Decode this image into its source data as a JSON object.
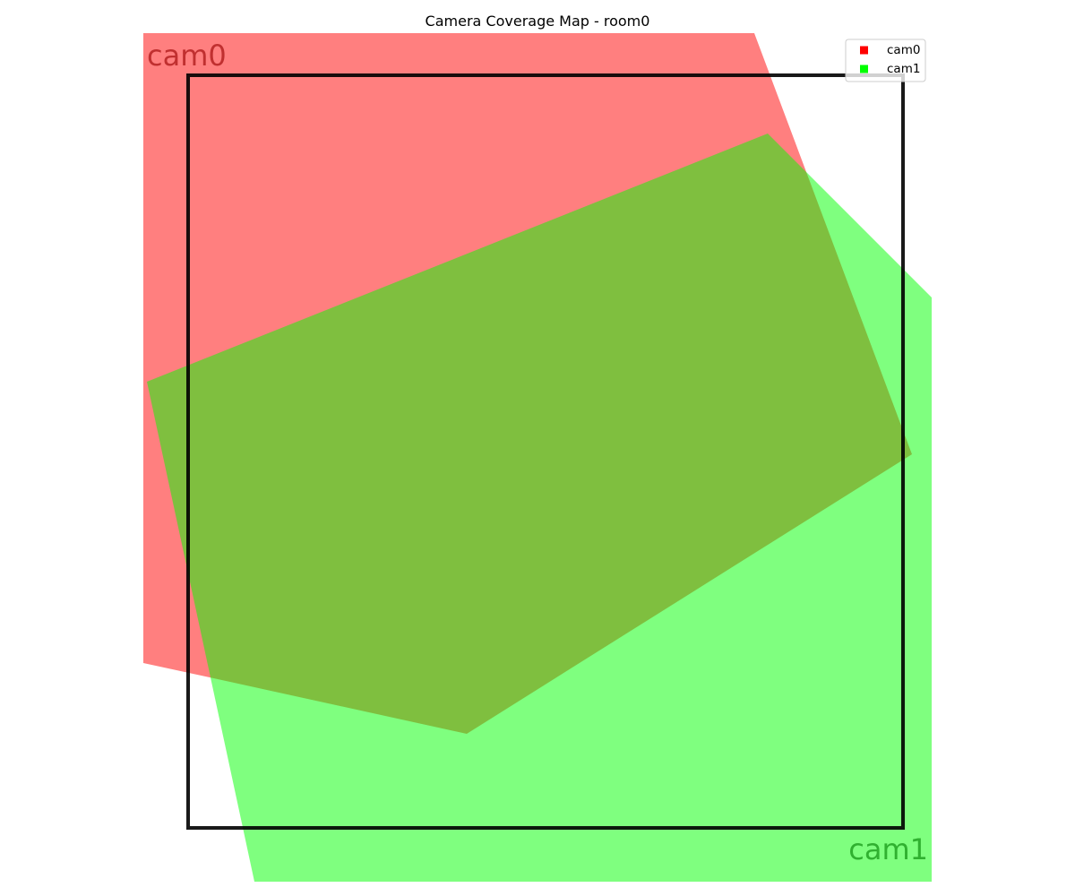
{
  "chart_data": {
    "type": "area",
    "title": "Camera Coverage Map - room0",
    "xlabel": "",
    "ylabel": "",
    "xlim": [
      -50,
      830
    ],
    "ylim": [
      0,
      948
    ],
    "grid": false,
    "axes_visible": false,
    "legend": {
      "placement": "top-right",
      "entries": [
        {
          "name": "cam0",
          "color": "#ff0000"
        },
        {
          "name": "cam1",
          "color": "#00ff00"
        }
      ]
    },
    "room": {
      "name": "room0",
      "corners": [
        [
          0,
          0
        ],
        [
          798,
          0
        ],
        [
          798,
          840
        ],
        [
          0,
          840
        ]
      ],
      "edge_color": "#000000"
    },
    "series": [
      {
        "name": "cam0",
        "fill_color": "#ff0000",
        "label_color": "#c03030",
        "alpha": 0.5,
        "polygon": [
          [
            -50,
            -47
          ],
          [
            632,
            -47
          ],
          [
            808,
            423
          ],
          [
            311,
            735
          ],
          [
            24,
            672
          ],
          [
            -50,
            656
          ]
        ],
        "label_anchor": [
          -46,
          -20
        ]
      },
      {
        "name": "cam1",
        "fill_color": "#00ff00",
        "label_color": "#30b030",
        "alpha": 0.5,
        "polygon": [
          [
            647,
            65
          ],
          [
            830,
            248
          ],
          [
            830,
            900
          ],
          [
            74,
            900
          ],
          [
            -46,
            342
          ]
        ],
        "label_anchor": [
          826,
          866
        ]
      }
    ],
    "overlap_color": "#80c040",
    "text_labels": [
      {
        "text": "cam1",
        "color": "#c03030"
      },
      {
        "text": "cam0",
        "color": "#30b030"
      }
    ]
  }
}
